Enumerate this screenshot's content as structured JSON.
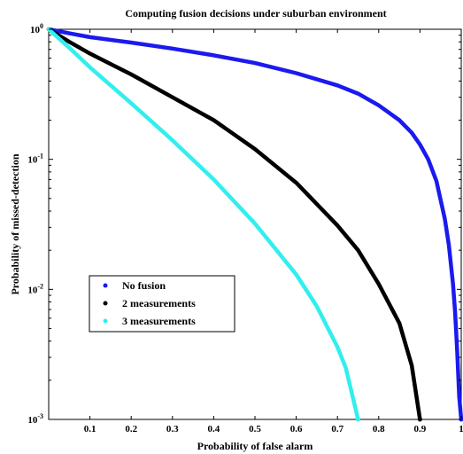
{
  "chart_data": {
    "type": "line",
    "title": "Computing fusion decisions under suburban environment",
    "xlabel": "Probability of false alarm",
    "ylabel": "Probability of missed-detection",
    "xlim": [
      0,
      1
    ],
    "ylim": [
      0.001,
      1
    ],
    "yscale": "log",
    "grid": false,
    "legend_position": "lower-left",
    "x_ticks": [
      {
        "value": 0.1,
        "label": "0.1"
      },
      {
        "value": 0.2,
        "label": "0.2"
      },
      {
        "value": 0.3,
        "label": "0.3"
      },
      {
        "value": 0.4,
        "label": "0.4"
      },
      {
        "value": 0.5,
        "label": "0.5"
      },
      {
        "value": 0.6,
        "label": "0.6"
      },
      {
        "value": 0.7,
        "label": "0.7"
      },
      {
        "value": 0.8,
        "label": "0.8"
      },
      {
        "value": 0.9,
        "label": "0.9"
      },
      {
        "value": 1.0,
        "label": "1"
      }
    ],
    "y_ticks": [
      {
        "value": 1,
        "base": "10",
        "exp": "0"
      },
      {
        "value": 0.1,
        "base": "10",
        "exp": "-1"
      },
      {
        "value": 0.01,
        "base": "10",
        "exp": "-2"
      },
      {
        "value": 0.001,
        "base": "10",
        "exp": "-3"
      }
    ],
    "series": [
      {
        "name": "No fusion",
        "color": "#1a1aee",
        "points": [
          [
            0,
            1
          ],
          [
            0.05,
            0.93
          ],
          [
            0.1,
            0.87
          ],
          [
            0.2,
            0.79
          ],
          [
            0.3,
            0.71
          ],
          [
            0.4,
            0.63
          ],
          [
            0.5,
            0.55
          ],
          [
            0.6,
            0.46
          ],
          [
            0.7,
            0.37
          ],
          [
            0.75,
            0.32
          ],
          [
            0.8,
            0.26
          ],
          [
            0.85,
            0.2
          ],
          [
            0.88,
            0.16
          ],
          [
            0.9,
            0.13
          ],
          [
            0.92,
            0.1
          ],
          [
            0.94,
            0.068
          ],
          [
            0.96,
            0.035
          ],
          [
            0.97,
            0.022
          ],
          [
            0.98,
            0.011
          ],
          [
            0.985,
            0.0068
          ],
          [
            0.99,
            0.0035
          ],
          [
            0.995,
            0.0015
          ],
          [
            1.0,
            0.001
          ]
        ]
      },
      {
        "name": "2 measurements",
        "color": "#000000",
        "points": [
          [
            0,
            1
          ],
          [
            0.05,
            0.8
          ],
          [
            0.1,
            0.65
          ],
          [
            0.2,
            0.45
          ],
          [
            0.3,
            0.3
          ],
          [
            0.4,
            0.2
          ],
          [
            0.5,
            0.12
          ],
          [
            0.6,
            0.066
          ],
          [
            0.7,
            0.031
          ],
          [
            0.75,
            0.02
          ],
          [
            0.8,
            0.011
          ],
          [
            0.85,
            0.0055
          ],
          [
            0.88,
            0.0026
          ],
          [
            0.9,
            0.001
          ]
        ]
      },
      {
        "name": "3 measurements",
        "color": "#33eeee",
        "points": [
          [
            0,
            1
          ],
          [
            0.05,
            0.72
          ],
          [
            0.1,
            0.51
          ],
          [
            0.2,
            0.27
          ],
          [
            0.3,
            0.14
          ],
          [
            0.4,
            0.07
          ],
          [
            0.5,
            0.032
          ],
          [
            0.6,
            0.013
          ],
          [
            0.65,
            0.0074
          ],
          [
            0.7,
            0.0036
          ],
          [
            0.72,
            0.0025
          ],
          [
            0.75,
            0.001
          ]
        ]
      }
    ]
  }
}
